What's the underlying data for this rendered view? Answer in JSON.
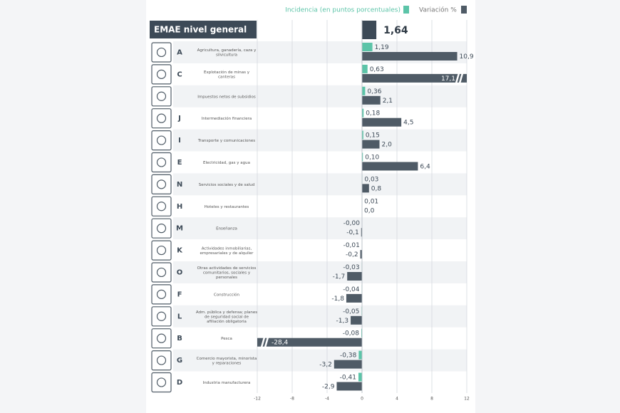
{
  "chart_data": {
    "type": "bar",
    "orientation": "horizontal",
    "header": {
      "label": "EMAE nivel general",
      "value": 1.64,
      "value_label": "1,64",
      "color": "#3d4a57"
    },
    "codes": [
      "A",
      "C",
      null,
      "J",
      "I",
      "E",
      "N",
      "H",
      "M",
      "K",
      "O",
      "F",
      "L",
      "B",
      "G",
      "D"
    ],
    "categories": [
      "Agricultura, ganadería, caza y silvicultura",
      "Explotación de minas y canteras",
      "Impuestos netos de subsidios",
      "Intermediación financiera",
      "Transporte y comunicaciones",
      "Electricidad, gas y agua",
      "Servicios sociales y de salud",
      "Hoteles y restaurantes",
      "Enseñanza",
      "Actividades inmobiliarias, empresariales y de alquiler",
      "Otras actividades de servicios comunitarios, sociales y personales",
      "Construcción",
      "Adm. pública y defensa; planes de seguridad social de afiliación obligatoria",
      "Pesca",
      "Comercio mayorista, minorista y reparaciones",
      "Industria manufacturera"
    ],
    "series": [
      {
        "name": "Incidencia (en puntos porcentuales)",
        "color": "#5cc4a8",
        "values": [
          1.19,
          0.63,
          0.36,
          0.18,
          0.15,
          0.1,
          0.03,
          0.01,
          0,
          -0.01,
          -0.03,
          -0.04,
          -0.05,
          -0.08,
          -0.38,
          -0.41
        ],
        "value_labels": [
          "1,19",
          "0,63",
          "0,36",
          "0,18",
          "0,15",
          "0,10",
          "0,03",
          "0,01",
          "-0,00",
          "-0,01",
          "-0,03",
          "-0,04",
          "-0,05",
          "-0,08",
          "-0,38",
          "-0,41"
        ]
      },
      {
        "name": "Variación %",
        "color": "#4f5b66",
        "values": [
          10.9,
          17.1,
          2.1,
          4.5,
          2.0,
          6.4,
          0.8,
          0.0,
          -0.1,
          -0.2,
          -1.7,
          -1.8,
          -1.3,
          -28.4,
          -3.2,
          -2.9
        ],
        "value_labels": [
          "10,9",
          "17,1",
          "2,1",
          "4,5",
          "2,0",
          "6,4",
          "0,8",
          "0,0",
          "-0,1",
          "-0,2",
          "-1,7",
          "-1,8",
          "-1,3",
          "-28,4",
          "-3,2",
          "-2,9"
        ]
      }
    ],
    "xlim": [
      -12,
      12
    ],
    "xticks": [
      -12,
      -8,
      -4,
      0,
      4,
      8,
      12
    ],
    "grid": true
  }
}
